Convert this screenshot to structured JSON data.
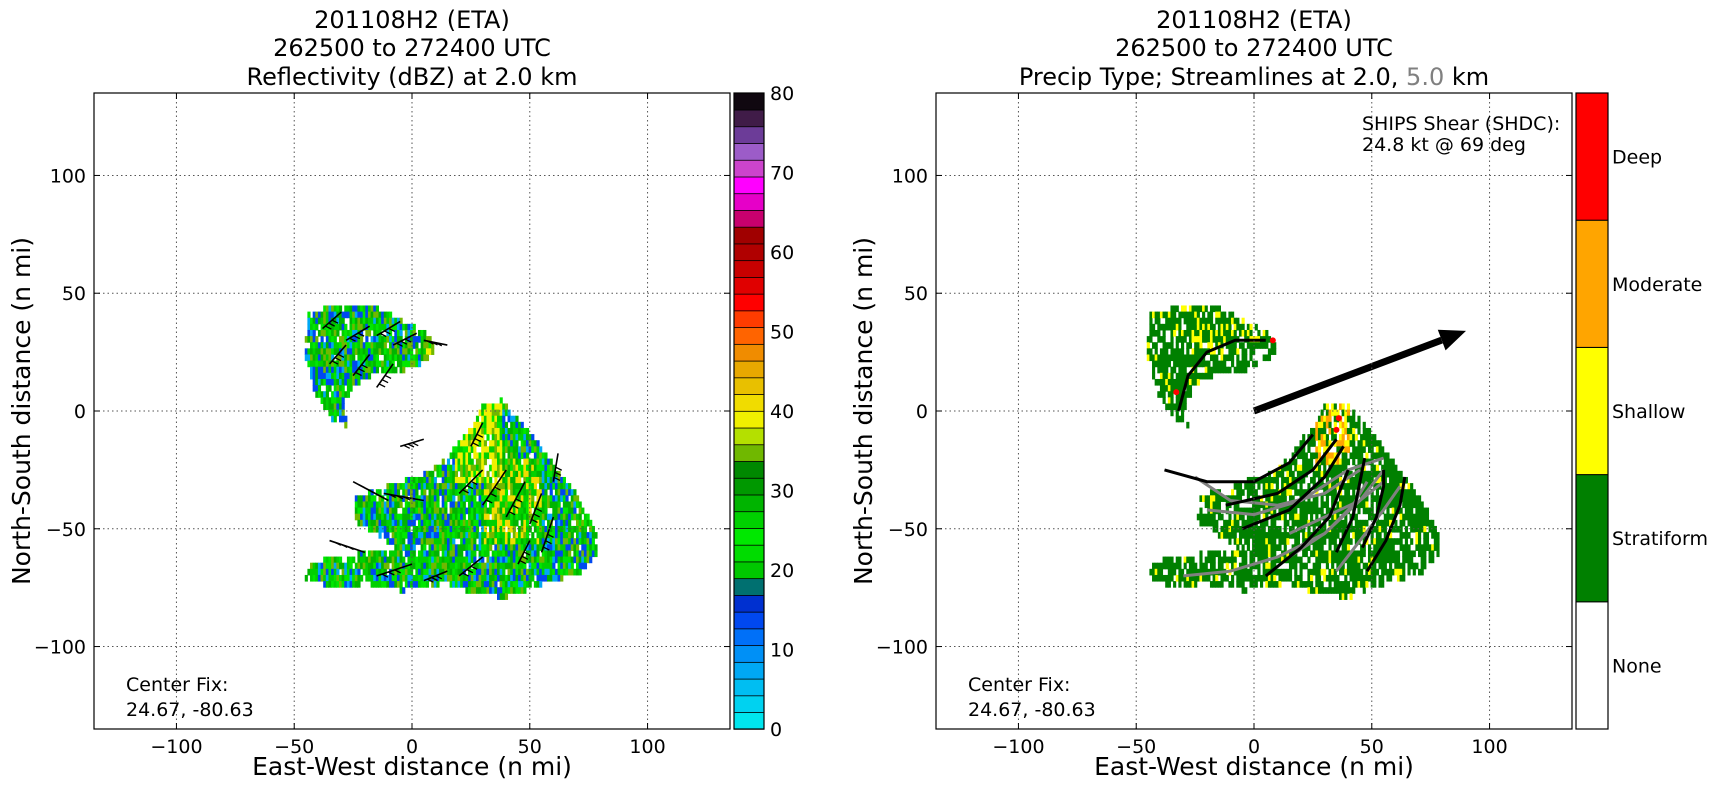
{
  "chart_data": [
    {
      "type": "heatmap",
      "title_lines": [
        "201108H2 (ETA)",
        "262500 to 272400 UTC",
        "Reflectivity (dBZ) at 2.0 km"
      ],
      "xlabel": "East-West distance (n mi)",
      "ylabel": "North-South distance (n mi)",
      "xlim": [
        -135,
        135
      ],
      "ylim": [
        -135,
        135
      ],
      "xticks": [
        -100,
        -50,
        0,
        50,
        100
      ],
      "yticks": [
        -100,
        -50,
        0,
        50,
        100
      ],
      "xtick_labels": [
        "−100",
        "−50",
        "0",
        "50",
        "100"
      ],
      "ytick_labels": [
        "−100",
        "−50",
        "0",
        "50",
        "100"
      ],
      "grid": true,
      "annotation_lines": [
        "Center Fix:",
        "24.67, -80.63"
      ],
      "colorbar": {
        "min": 0,
        "max": 80,
        "step": 2.5,
        "ticks": [
          0,
          10,
          20,
          30,
          40,
          50,
          60,
          70,
          80
        ],
        "tick_labels": [
          "0",
          "10",
          "20",
          "30",
          "40",
          "50",
          "60",
          "70",
          "80"
        ],
        "colors": [
          "#00e5ee",
          "#00d2f0",
          "#00bef2",
          "#00a8f4",
          "#0090f6",
          "#0070f8",
          "#0048f0",
          "#0030d0",
          "#007070",
          "#00c800",
          "#00dc00",
          "#00e800",
          "#00d000",
          "#00b400",
          "#009800",
          "#008800",
          "#70b800",
          "#b4e000",
          "#f0f000",
          "#f0dc00",
          "#e8c000",
          "#e8a800",
          "#f08c00",
          "#ff6400",
          "#ff3c00",
          "#ff0000",
          "#e00000",
          "#c80000",
          "#b00000",
          "#a00000",
          "#c8006e",
          "#e600c8",
          "#ff00ff",
          "#cc44cc",
          "#9c5cc8",
          "#6c3c98",
          "#401c48",
          "#100810"
        ]
      },
      "echo_regions": [
        {
          "name": "north band",
          "points": [
            [
              -45,
              42
            ],
            [
              -38,
              45
            ],
            [
              -25,
              46
            ],
            [
              -15,
              45
            ],
            [
              -5,
              40
            ],
            [
              5,
              35
            ],
            [
              10,
              28
            ],
            [
              4,
              22
            ],
            [
              -5,
              18
            ],
            [
              -15,
              18
            ],
            [
              -25,
              12
            ],
            [
              -30,
              5
            ],
            [
              -28,
              -5
            ],
            [
              -35,
              -2
            ],
            [
              -42,
              10
            ],
            [
              -46,
              25
            ]
          ]
        },
        {
          "name": "inner core",
          "points": [
            [
              25,
              -5
            ],
            [
              30,
              5
            ],
            [
              38,
              6
            ],
            [
              45,
              -2
            ],
            [
              55,
              -15
            ],
            [
              62,
              -25
            ],
            [
              70,
              -35
            ],
            [
              78,
              -50
            ],
            [
              78,
              -60
            ],
            [
              70,
              -68
            ],
            [
              55,
              -72
            ],
            [
              40,
              -78
            ],
            [
              25,
              -76
            ],
            [
              10,
              -70
            ],
            [
              0,
              -62
            ],
            [
              -10,
              -55
            ],
            [
              -25,
              -45
            ],
            [
              -25,
              -35
            ],
            [
              -10,
              -30
            ],
            [
              5,
              -25
            ],
            [
              15,
              -18
            ],
            [
              20,
              -10
            ]
          ]
        },
        {
          "name": "southern band",
          "points": [
            [
              -45,
              -65
            ],
            [
              -40,
              -62
            ],
            [
              -30,
              -60
            ],
            [
              -15,
              -58
            ],
            [
              0,
              -55
            ],
            [
              10,
              -58
            ],
            [
              15,
              -65
            ],
            [
              10,
              -73
            ],
            [
              -5,
              -75
            ],
            [
              -20,
              -72
            ],
            [
              -35,
              -73
            ],
            [
              -46,
              -70
            ]
          ]
        }
      ]
    },
    {
      "type": "heatmap",
      "title_lines": [
        "201108H2 (ETA)",
        "262500 to 272400 UTC"
      ],
      "title_line3_parts": [
        "Precip Type; Streamlines at 2.0, ",
        "5.0",
        " km"
      ],
      "xlabel": "East-West distance (n mi)",
      "ylabel": "North-South distance (n mi)",
      "xlim": [
        -135,
        135
      ],
      "ylim": [
        -135,
        135
      ],
      "xticks": [
        -100,
        -50,
        0,
        50,
        100
      ],
      "yticks": [
        -100,
        -50,
        0,
        50,
        100
      ],
      "xtick_labels": [
        "−100",
        "−50",
        "0",
        "50",
        "100"
      ],
      "ytick_labels": [
        "−100",
        "−50",
        "0",
        "50",
        "100"
      ],
      "grid": true,
      "annotation_lines": [
        "Center Fix:",
        "24.67, -80.63"
      ],
      "shear_lines": [
        "SHIPS Shear (SHDC):",
        "24.8 kt @ 69 deg"
      ],
      "shear_vector": {
        "from": [
          0,
          0
        ],
        "to": [
          90,
          34
        ]
      },
      "categories": [
        {
          "name": "None",
          "color": "#ffffff"
        },
        {
          "name": "Stratiform",
          "color": "#008000"
        },
        {
          "name": "Shallow",
          "color": "#ffff00"
        },
        {
          "name": "Moderate",
          "color": "#ffa500"
        },
        {
          "name": "Deep",
          "color": "#ff0000"
        }
      ],
      "streamlines_2km": [
        [
          [
            -32,
            0
          ],
          [
            -28,
            15
          ],
          [
            -20,
            25
          ],
          [
            -8,
            30
          ],
          [
            5,
            30
          ]
        ],
        [
          [
            -38,
            -25
          ],
          [
            -20,
            -30
          ],
          [
            0,
            -30
          ],
          [
            15,
            -22
          ],
          [
            25,
            -10
          ]
        ],
        [
          [
            -12,
            -40
          ],
          [
            10,
            -35
          ],
          [
            25,
            -25
          ],
          [
            35,
            -12
          ]
        ],
        [
          [
            -5,
            -50
          ],
          [
            15,
            -42
          ],
          [
            30,
            -28
          ],
          [
            38,
            -15
          ]
        ],
        [
          [
            35,
            -60
          ],
          [
            42,
            -45
          ],
          [
            45,
            -30
          ],
          [
            47,
            -20
          ]
        ],
        [
          [
            46,
            -58
          ],
          [
            52,
            -45
          ],
          [
            55,
            -32
          ],
          [
            55,
            -25
          ]
        ],
        [
          [
            48,
            -68
          ],
          [
            56,
            -55
          ],
          [
            62,
            -40
          ],
          [
            64,
            -28
          ]
        ],
        [
          [
            5,
            -70
          ],
          [
            20,
            -58
          ],
          [
            32,
            -45
          ],
          [
            40,
            -25
          ]
        ]
      ],
      "streamlines_5km": [
        [
          [
            -25,
            -28
          ],
          [
            -10,
            -38
          ],
          [
            10,
            -40
          ],
          [
            30,
            -35
          ],
          [
            45,
            -25
          ]
        ],
        [
          [
            -20,
            -42
          ],
          [
            0,
            -44
          ],
          [
            20,
            -38
          ],
          [
            40,
            -25
          ],
          [
            55,
            -20
          ]
        ],
        [
          [
            -30,
            -70
          ],
          [
            -10,
            -68
          ],
          [
            10,
            -62
          ],
          [
            30,
            -52
          ],
          [
            45,
            -38
          ],
          [
            55,
            -30
          ]
        ],
        [
          [
            15,
            -52
          ],
          [
            30,
            -45
          ],
          [
            45,
            -38
          ],
          [
            55,
            -25
          ]
        ],
        [
          [
            15,
            -62
          ],
          [
            30,
            -52
          ],
          [
            42,
            -40
          ],
          [
            48,
            -30
          ]
        ],
        [
          [
            35,
            -68
          ],
          [
            45,
            -55
          ],
          [
            55,
            -42
          ],
          [
            62,
            -32
          ]
        ]
      ]
    }
  ]
}
